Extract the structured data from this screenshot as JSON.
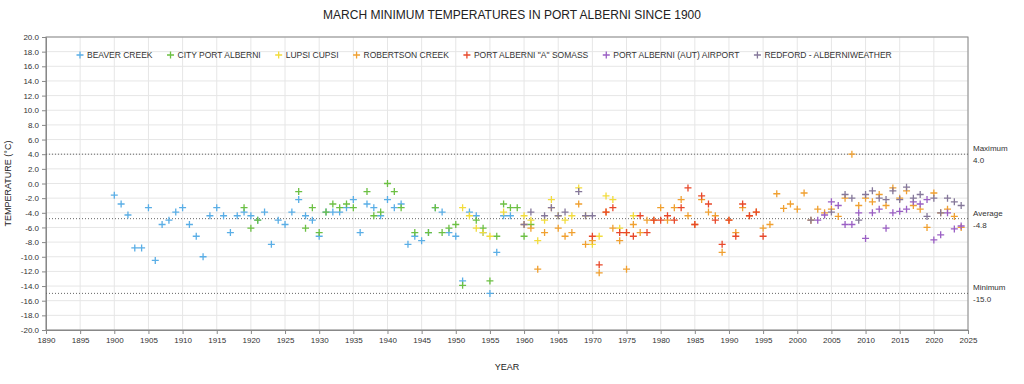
{
  "chart_data": {
    "type": "scatter",
    "title": "MARCH MINIMUM TEMPERATURES IN PORT ALBERNI SINCE 1900",
    "x_label": "YEAR",
    "y_label": "TEMPERATURE (°C)",
    "grid": true,
    "legend": "top-left",
    "marker": "plus",
    "xlim": [
      1890,
      2025
    ],
    "xticks": [
      1890,
      1895,
      1900,
      1905,
      1910,
      1915,
      1920,
      1925,
      1930,
      1935,
      1940,
      1945,
      1950,
      1955,
      1960,
      1965,
      1970,
      1975,
      1980,
      1985,
      1990,
      1995,
      2000,
      2005,
      2010,
      2015,
      2020,
      2025
    ],
    "ylim": [
      -20,
      20
    ],
    "yticks": [
      {
        "value": 20,
        "label": "20.0"
      },
      {
        "value": 18,
        "label": "18.0"
      },
      {
        "value": 16,
        "label": "16.0"
      },
      {
        "value": 14,
        "label": "14.0"
      },
      {
        "value": 12,
        "label": "12.0"
      },
      {
        "value": 10,
        "label": "10.0"
      },
      {
        "value": 8,
        "label": "8.0"
      },
      {
        "value": 6,
        "label": "6.0"
      },
      {
        "value": 4,
        "label": "4.0"
      },
      {
        "value": 2,
        "label": "2.0"
      },
      {
        "value": 0,
        "label": "0.0"
      },
      {
        "value": -2,
        "label": "-2.0"
      },
      {
        "value": -4,
        "label": "-4.0"
      },
      {
        "value": -6,
        "label": "-6.0"
      },
      {
        "value": -8,
        "label": "-8.0"
      },
      {
        "value": -10,
        "label": "-10.0"
      },
      {
        "value": -12,
        "label": "-12.0"
      },
      {
        "value": -14,
        "label": "-14.0"
      },
      {
        "value": -16,
        "label": "-16.0"
      },
      {
        "value": -18,
        "label": "-18.0"
      },
      {
        "value": -20,
        "label": "-20.0"
      }
    ],
    "annotations": [
      {
        "text": "Maximum",
        "value": 4,
        "label": "4.0"
      },
      {
        "text": "Average",
        "value": -4.8,
        "label": "-4.8"
      },
      {
        "text": "Minimum",
        "value": -15,
        "label": "-15.0"
      }
    ],
    "series": [
      {
        "name": "BEAVER CREEK",
        "color": "#5aaee6",
        "x": [
          1900,
          1901,
          1902,
          1903,
          1904,
          1905,
          1906,
          1907,
          1908,
          1909,
          1910,
          1911,
          1912,
          1913,
          1914,
          1915,
          1916,
          1917,
          1918,
          1919,
          1920,
          1921,
          1922,
          1923,
          1924,
          1925,
          1926,
          1927,
          1928,
          1929,
          1930,
          1931,
          1932,
          1933,
          1934,
          1935,
          1936,
          1937,
          1938,
          1939,
          1940,
          1941,
          1942,
          1943,
          1944,
          1945,
          1946,
          1947,
          1948,
          1949,
          1950,
          1951,
          1952,
          1953,
          1954,
          1955,
          1956,
          1957,
          1958
        ],
        "values": [
          -1.6,
          -2.8,
          -4.3,
          -8.8,
          -8.8,
          -3.3,
          -10.5,
          -5.6,
          -5.0,
          -3.9,
          -3.3,
          -5.6,
          -7.2,
          -10.0,
          -4.4,
          -3.3,
          -4.4,
          -6.7,
          -4.4,
          -3.9,
          -4.4,
          -5.0,
          -3.9,
          -8.3,
          -5.0,
          -5.6,
          -3.9,
          -2.2,
          -4.4,
          -5.0,
          -7.2,
          -3.9,
          -3.9,
          -3.9,
          -3.3,
          -2.2,
          -6.7,
          -2.8,
          -3.3,
          -4.4,
          -2.2,
          -3.3,
          -2.8,
          -8.3,
          -7.2,
          -7.8,
          -6.7,
          -3.3,
          -3.9,
          -6.7,
          -7.2,
          -13.3,
          -3.9,
          -4.4,
          -6.7,
          -15.0,
          -9.4,
          -4.4,
          -4.4
        ]
      },
      {
        "name": "CITY PORT ALBERNI",
        "color": "#6cc043",
        "x": [
          1919,
          1920,
          1921,
          1927,
          1928,
          1929,
          1930,
          1931,
          1932,
          1933,
          1934,
          1935,
          1937,
          1938,
          1939,
          1940,
          1941,
          1942,
          1944,
          1946,
          1947,
          1948,
          1949,
          1950,
          1951,
          1953,
          1954,
          1955,
          1956,
          1957,
          1958,
          1959,
          1960,
          1961
        ],
        "values": [
          -3.3,
          -6.1,
          -5.0,
          -1.1,
          -6.1,
          -3.3,
          -6.7,
          -3.9,
          -2.8,
          -3.3,
          -2.8,
          -3.3,
          -1.1,
          -4.4,
          -3.9,
          0.0,
          -1.1,
          -3.3,
          -6.7,
          -6.7,
          -3.3,
          -6.7,
          -6.1,
          -5.6,
          -13.9,
          -5.0,
          -6.1,
          -13.3,
          -7.2,
          -2.8,
          -3.3,
          -3.3,
          -7.2,
          -5.6
        ]
      },
      {
        "name": "LUPSI CUPSI",
        "color": "#f2dc3c",
        "x": [
          1951,
          1952,
          1953,
          1954,
          1955,
          1957,
          1960,
          1961,
          1962,
          1963,
          1964,
          1965,
          1966,
          1967,
          1968,
          1969,
          1970,
          1971,
          1972,
          1973,
          1974,
          1975,
          1976
        ],
        "values": [
          -3.3,
          -4.4,
          -6.1,
          -6.7,
          -7.2,
          -3.9,
          -4.4,
          -5.0,
          -7.8,
          -5.0,
          -2.2,
          -4.4,
          -5.0,
          -4.4,
          -0.6,
          -4.4,
          -8.3,
          -7.2,
          -1.7,
          -2.2,
          -6.1,
          -6.7,
          -4.4
        ]
      },
      {
        "name": "ROBERTSON CREEK",
        "color": "#f0a030",
        "x": [
          1960,
          1961,
          1962,
          1963,
          1964,
          1965,
          1966,
          1967,
          1968,
          1969,
          1970,
          1971,
          1972,
          1973,
          1974,
          1975,
          1976,
          1977,
          1978,
          1979,
          1980,
          1981,
          1982,
          1983,
          1984,
          1985,
          1986,
          1987,
          1988,
          1989,
          1990,
          1991,
          1992,
          1993,
          1994,
          1995,
          1996,
          1997,
          1998,
          1999,
          2000,
          2001,
          2002,
          2003,
          2004,
          2005,
          2006,
          2007,
          2008,
          2009,
          2010,
          2011,
          2012,
          2013,
          2014,
          2015,
          2016,
          2017,
          2018,
          2019,
          2020,
          2021,
          2022,
          2023,
          2024
        ],
        "values": [
          -5.6,
          -6.1,
          -11.7,
          -6.7,
          -3.3,
          -6.1,
          -7.2,
          -6.7,
          -2.8,
          -8.3,
          -7.8,
          -12.2,
          -3.9,
          -6.1,
          -7.8,
          -11.7,
          -5.6,
          -6.7,
          -5.0,
          -5.0,
          -3.3,
          -5.0,
          -3.3,
          -2.2,
          -4.4,
          -5.6,
          -2.2,
          -3.9,
          -4.4,
          -9.4,
          -5.0,
          -6.7,
          -3.3,
          -4.4,
          -3.9,
          -6.1,
          -5.6,
          -1.4,
          -3.4,
          -2.8,
          -3.5,
          -1.3,
          -5.0,
          -3.5,
          -4.0,
          -3.5,
          -4.5,
          -2.0,
          4.0,
          -3.0,
          -2.0,
          -2.5,
          -1.5,
          -3.0,
          -0.6,
          -2.0,
          -1.0,
          -3.0,
          -3.5,
          -6.0,
          -1.3,
          -4.0,
          -3.5,
          -4.5,
          -6.0
        ]
      },
      {
        "name": "PORT ALBERNI \"A\" SOMASS",
        "color": "#e8482a",
        "x": [
          1970,
          1971,
          1972,
          1973,
          1974,
          1975,
          1976,
          1977,
          1978,
          1979,
          1980,
          1981,
          1982,
          1983,
          1984,
          1985,
          1986,
          1987,
          1988,
          1989,
          1990,
          1991,
          1992,
          1993,
          1994,
          1995
        ],
        "values": [
          -7.2,
          -11.1,
          -3.9,
          -3.3,
          -6.7,
          -6.7,
          -7.2,
          -4.4,
          -6.7,
          -5.0,
          -5.0,
          -4.4,
          -5.0,
          -3.3,
          -0.6,
          -5.6,
          -1.7,
          -2.8,
          -5.0,
          -8.3,
          -5.0,
          -7.2,
          -2.8,
          -4.4,
          -3.9,
          -7.2
        ]
      },
      {
        "name": "PORT ALBERNI (AUT) AIRPORT",
        "color": "#9a5fc4",
        "x": [
          2003,
          2004,
          2005,
          2006,
          2007,
          2008,
          2009,
          2010,
          2011,
          2012,
          2013,
          2014,
          2015,
          2016,
          2017,
          2018,
          2019,
          2020,
          2021,
          2022,
          2023,
          2024
        ],
        "values": [
          -5.0,
          -4.3,
          -2.5,
          -3.0,
          -5.6,
          -5.6,
          -4.0,
          -7.5,
          -4.0,
          -3.5,
          -6.1,
          -4.0,
          -3.8,
          -3.5,
          -2.5,
          -2.8,
          -2.2,
          -7.7,
          -7.0,
          -4.0,
          -6.2,
          -5.8
        ]
      },
      {
        "name": "REDFORD - ALBERNIWEATHER",
        "color": "#85789a",
        "x": [
          1960,
          1961,
          1963,
          1964,
          1965,
          1966,
          1968,
          1969,
          1970,
          2002,
          2005,
          2007,
          2008,
          2009,
          2010,
          2011,
          2012,
          2013,
          2014,
          2015,
          2016,
          2017,
          2018,
          2019,
          2020,
          2021,
          2022,
          2023,
          2024
        ],
        "values": [
          -5.6,
          -3.9,
          -4.4,
          -3.3,
          -4.4,
          -3.9,
          -1.1,
          -4.4,
          -4.4,
          -5.0,
          -3.9,
          -1.5,
          -2.0,
          -5.0,
          -1.5,
          -1.0,
          -2.0,
          -2.2,
          -1.0,
          -2.2,
          -0.5,
          -2.0,
          -1.5,
          -4.5,
          -2.0,
          -4.0,
          -2.0,
          -2.5,
          -3.0
        ]
      }
    ]
  }
}
